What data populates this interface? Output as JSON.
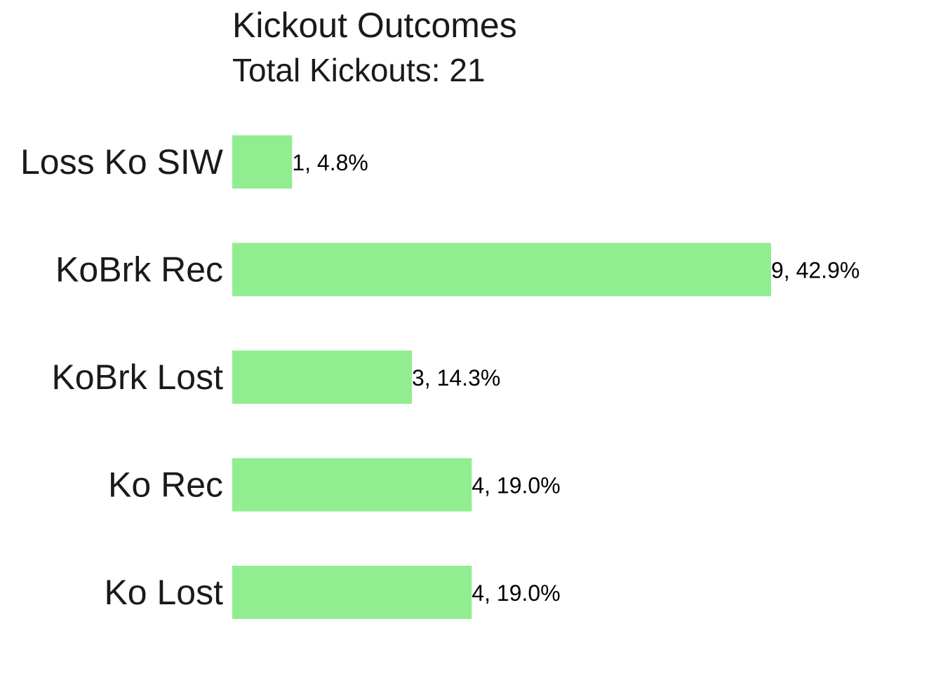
{
  "chart_data": {
    "type": "bar",
    "orientation": "horizontal",
    "title": "Kickout Outcomes",
    "subtitle": "Total Kickouts: 21",
    "categories": [
      "Loss Ko SIW",
      "KoBrk Rec",
      "KoBrk Lost",
      "Ko Rec",
      "Ko Lost"
    ],
    "values": [
      1,
      9,
      3,
      4,
      4
    ],
    "data_labels": [
      "1, 4.8%",
      "9, 42.9%",
      "3, 14.3%",
      "4, 19.0%",
      "4, 19.0%"
    ],
    "xlim": [
      0,
      9
    ],
    "grid": false,
    "legend": "none",
    "bar_color": "#90EE90"
  }
}
